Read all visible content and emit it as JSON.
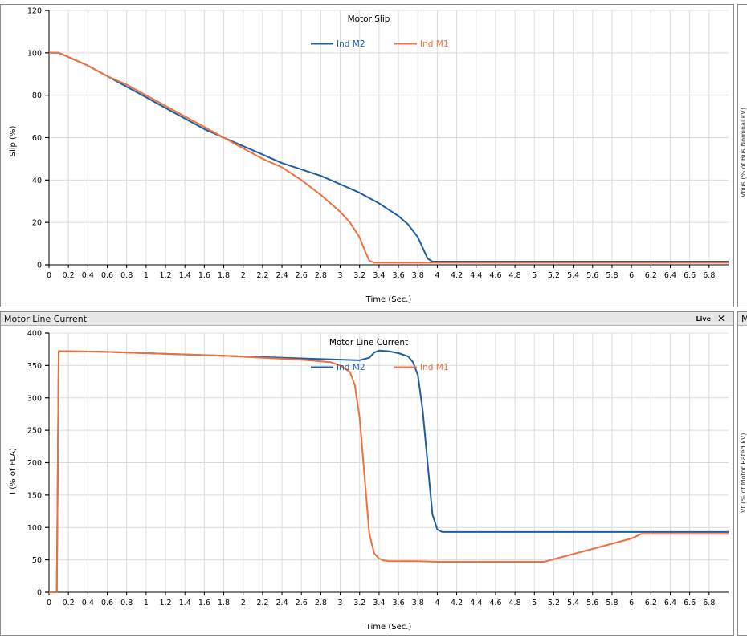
{
  "panels": {
    "bottom_title": "Motor Line Current",
    "bottom_live": "Live",
    "bottom_close": "✕",
    "right_top_fragment": "",
    "right_bottom_fragment": "M",
    "right_top_axis_fragment": "Vbus (% of Bus Nominal kV)",
    "right_bottom_axis_fragment": "Vt (% of Motor Rated kV)"
  },
  "colors": {
    "m2": "#1f5fa0",
    "m1": "#f07040"
  },
  "chart_data": [
    {
      "type": "line",
      "title": "Motor Slip",
      "xlabel": "Time (Sec.)",
      "ylabel": "Slip (%)",
      "xlim": [
        0,
        7
      ],
      "ylim": [
        0,
        120
      ],
      "xticks": [
        0,
        0.2,
        0.4,
        0.6,
        0.8,
        1,
        1.2,
        1.4,
        1.6,
        1.8,
        2,
        2.2,
        2.4,
        2.6,
        2.8,
        3,
        3.2,
        3.4,
        3.6,
        3.8,
        4,
        4.2,
        4.4,
        4.6,
        4.8,
        5,
        5.2,
        5.4,
        5.6,
        5.8,
        6,
        6.2,
        6.4,
        6.6,
        6.8
      ],
      "xtick_labels": [
        "0",
        "0.2",
        "0.4",
        "0.6",
        "0.8",
        "1",
        "1.2",
        "1.4",
        "1.6",
        "1.8",
        "2",
        "2.2",
        "2.4",
        "2.6",
        "2.8",
        "3",
        "3.2",
        "3.4",
        "3.6",
        "3.8",
        "4",
        "4.2",
        "4.4",
        "4.6",
        "4.8",
        "5",
        "5.2",
        "5.4",
        "5.6",
        "5.8",
        "6",
        "6.2",
        "6.4",
        "6.6",
        "6.8"
      ],
      "yticks": [
        0,
        20,
        40,
        60,
        80,
        100,
        120
      ],
      "ytick_labels": [
        "0",
        "20",
        "40",
        "60",
        "80",
        "100",
        "120"
      ],
      "grid": true,
      "legend": "top-center",
      "series": [
        {
          "name": "Ind M2",
          "x": [
            0,
            0.1,
            0.2,
            0.4,
            0.6,
            0.8,
            1.0,
            1.2,
            1.4,
            1.6,
            1.8,
            2.0,
            2.2,
            2.4,
            2.6,
            2.8,
            3.0,
            3.2,
            3.4,
            3.6,
            3.7,
            3.8,
            3.85,
            3.9,
            3.95,
            4.0,
            4.2,
            4.5,
            5.0,
            5.5,
            6.0,
            6.5,
            7.0
          ],
          "y": [
            100,
            100,
            98,
            94,
            89,
            84,
            79,
            74,
            69,
            64,
            60,
            56,
            52,
            48,
            45,
            42,
            38,
            34,
            29,
            23,
            19,
            13,
            8,
            3,
            1.5,
            1.5,
            1.5,
            1.5,
            1.5,
            1.5,
            1.5,
            1.5,
            1.5
          ]
        },
        {
          "name": "Ind M1",
          "x": [
            0,
            0.1,
            0.2,
            0.4,
            0.6,
            0.8,
            1.0,
            1.2,
            1.4,
            1.6,
            1.8,
            2.0,
            2.2,
            2.4,
            2.6,
            2.8,
            3.0,
            3.1,
            3.2,
            3.25,
            3.3,
            3.35,
            3.4,
            3.5,
            4.0,
            5.0,
            6.0,
            7.0
          ],
          "y": [
            100,
            100,
            98,
            94,
            89,
            85,
            80,
            75,
            70,
            65,
            60,
            55,
            50,
            46,
            40,
            33,
            25,
            20,
            13,
            7,
            2,
            1,
            1,
            1,
            1,
            1,
            1,
            1
          ]
        }
      ]
    },
    {
      "type": "line",
      "title": "Motor Line Current",
      "xlabel": "Time (Sec.)",
      "ylabel": "I (% of FLA)",
      "xlim": [
        0,
        7
      ],
      "ylim": [
        0,
        400
      ],
      "xticks": [
        0,
        0.2,
        0.4,
        0.6,
        0.8,
        1,
        1.2,
        1.4,
        1.6,
        1.8,
        2,
        2.2,
        2.4,
        2.6,
        2.8,
        3,
        3.2,
        3.4,
        3.6,
        3.8,
        4,
        4.2,
        4.4,
        4.6,
        4.8,
        5,
        5.2,
        5.4,
        5.6,
        5.8,
        6,
        6.2,
        6.4,
        6.6,
        6.8
      ],
      "xtick_labels": [
        "0",
        "0.2",
        "0.4",
        "0.6",
        "0.8",
        "1",
        "1.2",
        "1.4",
        "1.6",
        "1.8",
        "2",
        "2.2",
        "2.4",
        "2.6",
        "2.8",
        "3",
        "3.2",
        "3.4",
        "3.6",
        "3.8",
        "4",
        "4.2",
        "4.4",
        "4.6",
        "4.8",
        "5",
        "5.2",
        "5.4",
        "5.6",
        "5.8",
        "6",
        "6.2",
        "6.4",
        "6.6",
        "6.8"
      ],
      "yticks": [
        0,
        50,
        100,
        150,
        200,
        250,
        300,
        350,
        400
      ],
      "ytick_labels": [
        "0",
        "50",
        "100",
        "150",
        "200",
        "250",
        "300",
        "350",
        "400"
      ],
      "grid": true,
      "legend": "top-center",
      "series": [
        {
          "name": "Ind M2",
          "x": [
            0,
            0.08,
            0.1,
            0.2,
            0.6,
            1.0,
            1.4,
            1.8,
            2.2,
            2.6,
            3.0,
            3.2,
            3.3,
            3.35,
            3.4,
            3.5,
            3.6,
            3.7,
            3.75,
            3.8,
            3.85,
            3.9,
            3.95,
            4.0,
            4.05,
            5.0,
            6.0,
            7.0
          ],
          "y": [
            0,
            0,
            372,
            372,
            371,
            369,
            367,
            365,
            363,
            361,
            359,
            358,
            362,
            370,
            373,
            372,
            369,
            364,
            355,
            335,
            280,
            200,
            120,
            97,
            93,
            93,
            93,
            93
          ]
        },
        {
          "name": "Ind M1",
          "x": [
            0,
            0.08,
            0.1,
            0.2,
            0.6,
            1.0,
            1.4,
            1.8,
            2.2,
            2.6,
            2.9,
            3.0,
            3.1,
            3.15,
            3.2,
            3.25,
            3.3,
            3.35,
            3.4,
            3.45,
            3.5,
            3.6,
            3.8,
            4.0,
            4.5,
            5.1,
            5.5,
            6.0,
            6.1,
            6.5,
            7.0
          ],
          "y": [
            0,
            0,
            372,
            372,
            371,
            369,
            367,
            365,
            362,
            359,
            355,
            350,
            340,
            320,
            270,
            180,
            90,
            60,
            52,
            49,
            48,
            48,
            48,
            47,
            47,
            47,
            63,
            83,
            90,
            90,
            90
          ]
        }
      ]
    }
  ]
}
